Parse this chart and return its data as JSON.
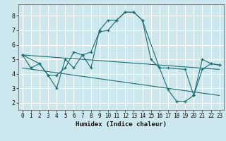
{
  "xlabel": "Humidex (Indice chaleur)",
  "xlim": [
    -0.5,
    23.5
  ],
  "ylim": [
    1.5,
    8.8
  ],
  "xticks": [
    0,
    1,
    2,
    3,
    4,
    5,
    6,
    7,
    8,
    9,
    10,
    11,
    12,
    13,
    14,
    15,
    16,
    17,
    18,
    19,
    20,
    21,
    22,
    23
  ],
  "yticks": [
    2,
    3,
    4,
    5,
    6,
    7,
    8
  ],
  "bg_color": "#cce8ee",
  "line_color": "#1a6e6e",
  "grid_color": "#ffffff",
  "lines": [
    {
      "x": [
        0,
        1,
        2,
        3,
        4,
        5,
        6,
        7,
        8,
        9,
        10,
        11,
        12,
        13,
        14,
        15,
        16,
        17,
        18,
        19,
        20,
        21,
        22,
        23
      ],
      "y": [
        5.3,
        4.4,
        4.7,
        3.9,
        3.0,
        5.0,
        4.4,
        5.3,
        4.4,
        7.0,
        7.7,
        7.7,
        8.25,
        8.25,
        7.7,
        5.0,
        4.4,
        2.9,
        2.1,
        2.1,
        2.5,
        5.0,
        4.7,
        4.6
      ],
      "marker": true
    },
    {
      "x": [
        0,
        2,
        3,
        4,
        5,
        6,
        7,
        8,
        9,
        10,
        11,
        12,
        13,
        14,
        16,
        17,
        19,
        20,
        21,
        22,
        23
      ],
      "y": [
        5.3,
        4.7,
        3.9,
        3.9,
        4.4,
        5.5,
        5.3,
        5.5,
        6.9,
        7.0,
        7.7,
        8.25,
        8.25,
        7.7,
        4.4,
        4.4,
        4.3,
        2.5,
        4.3,
        4.7,
        4.6
      ],
      "marker": true
    },
    {
      "x": [
        0,
        23
      ],
      "y": [
        5.3,
        4.3
      ],
      "marker": false
    },
    {
      "x": [
        0,
        23
      ],
      "y": [
        4.4,
        2.5
      ],
      "marker": false
    }
  ]
}
